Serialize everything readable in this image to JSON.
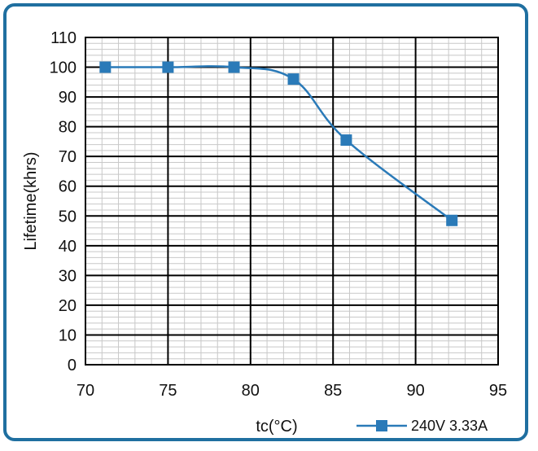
{
  "chart_data": {
    "type": "line",
    "title": "",
    "xlabel": "tc(°C)",
    "ylabel": "Lifetime(khrs)",
    "xlim": [
      70,
      95
    ],
    "ylim": [
      0,
      110
    ],
    "x_ticks": [
      "70",
      "75",
      "80",
      "85",
      "90",
      "95"
    ],
    "y_ticks": [
      "0",
      "10",
      "20",
      "30",
      "40",
      "50",
      "60",
      "70",
      "80",
      "90",
      "100",
      "110"
    ],
    "grid": true,
    "legend_position": "bottom-right",
    "series": [
      {
        "name": "240V 3.33A",
        "color": "#2a7ab8",
        "marker": "square",
        "x": [
          71.2,
          75,
          79,
          82.6,
          85.8,
          92.2
        ],
        "y": [
          100,
          100,
          100,
          96,
          75.5,
          48.5
        ]
      }
    ]
  }
}
